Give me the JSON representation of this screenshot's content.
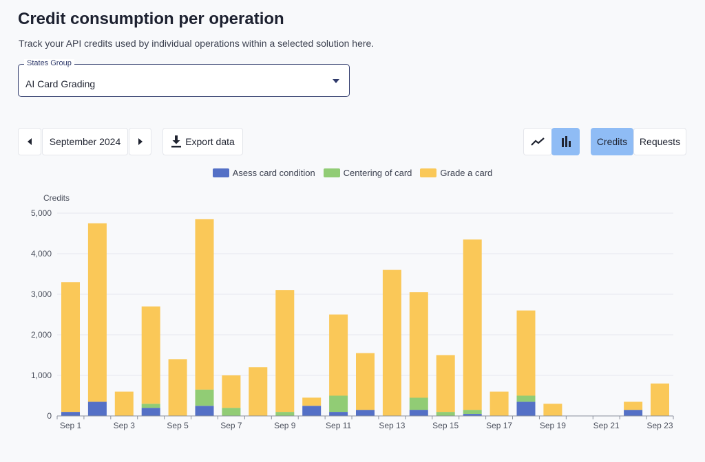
{
  "header": {
    "title": "Credit consumption per operation",
    "subtitle": "Track your API credits used by individual operations within a selected solution here."
  },
  "states_group": {
    "label": "States Group",
    "value": "AI Card Grading"
  },
  "toolbar": {
    "month": "September 2024",
    "export_label": "Export data",
    "credits_label": "Credits",
    "requests_label": "Requests"
  },
  "colors": {
    "assess": "#5470c6",
    "centering": "#91cc75",
    "grade": "#fac858"
  },
  "chart_data": {
    "type": "bar",
    "stacked": true,
    "ylabel": "Credits",
    "ylim": [
      0,
      5000
    ],
    "yticks": [
      0,
      1000,
      2000,
      3000,
      4000,
      5000
    ],
    "ytick_labels": [
      "0",
      "1,000",
      "2,000",
      "3,000",
      "4,000",
      "5,000"
    ],
    "x_tick_labels": [
      "Sep 1",
      "Sep 3",
      "Sep 5",
      "Sep 7",
      "Sep 9",
      "Sep 11",
      "Sep 13",
      "Sep 15",
      "Sep 17",
      "Sep 19",
      "Sep 21",
      "Sep 23"
    ],
    "categories": [
      "Sep 1",
      "Sep 2",
      "Sep 3",
      "Sep 4",
      "Sep 5",
      "Sep 6",
      "Sep 7",
      "Sep 8",
      "Sep 9",
      "Sep 10",
      "Sep 11",
      "Sep 12",
      "Sep 13",
      "Sep 14",
      "Sep 15",
      "Sep 16",
      "Sep 17",
      "Sep 18",
      "Sep 19",
      "Sep 20",
      "Sep 21",
      "Sep 22",
      "Sep 23"
    ],
    "series": [
      {
        "name": "Asess card condition",
        "values": [
          100,
          350,
          0,
          200,
          0,
          250,
          0,
          0,
          0,
          250,
          100,
          150,
          0,
          150,
          0,
          50,
          0,
          350,
          0,
          0,
          0,
          150,
          0
        ]
      },
      {
        "name": "Centering of card",
        "values": [
          0,
          0,
          0,
          100,
          0,
          400,
          200,
          0,
          100,
          0,
          400,
          0,
          0,
          300,
          100,
          100,
          0,
          150,
          0,
          0,
          0,
          0,
          0
        ]
      },
      {
        "name": "Grade a card",
        "values": [
          3200,
          4400,
          600,
          2400,
          1400,
          4200,
          800,
          1200,
          3000,
          200,
          2000,
          1400,
          3600,
          2600,
          1400,
          4200,
          600,
          2100,
          300,
          0,
          0,
          200,
          800
        ]
      }
    ]
  }
}
